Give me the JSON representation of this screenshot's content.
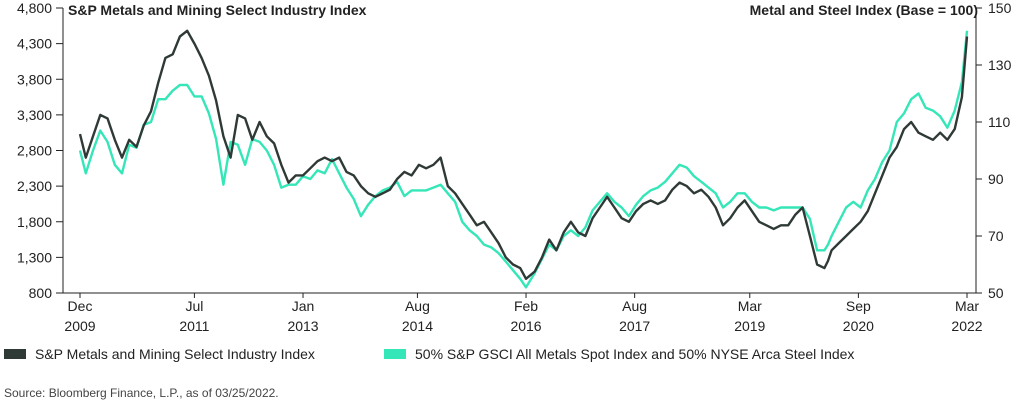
{
  "chart_data": {
    "type": "line",
    "title_left": "S&P Metals and Mining Select Industry Index",
    "title_right": "Metal and Steel Index (Base = 100)",
    "x_ticks": [
      {
        "month": "Dec",
        "year": "2009",
        "t": 2009.92
      },
      {
        "month": "Jul",
        "year": "2011",
        "t": 2011.5
      },
      {
        "month": "Jan",
        "year": "2013",
        "t": 2013.0
      },
      {
        "month": "Aug",
        "year": "2014",
        "t": 2014.58
      },
      {
        "month": "Feb",
        "year": "2016",
        "t": 2016.08
      },
      {
        "month": "Aug",
        "year": "2017",
        "t": 2017.58
      },
      {
        "month": "Mar",
        "year": "2019",
        "t": 2019.17
      },
      {
        "month": "Sep",
        "year": "2020",
        "t": 2020.67
      },
      {
        "month": "Mar",
        "year": "2022",
        "t": 2022.17
      }
    ],
    "xlim": [
      2009.92,
      2022.17
    ],
    "y_left": {
      "ticks": [
        "800",
        "1,300",
        "1,800",
        "2,300",
        "2,800",
        "3,300",
        "3,800",
        "4,300",
        "4,800"
      ],
      "lim": [
        800,
        4800
      ]
    },
    "y_right": {
      "ticks": [
        "50",
        "70",
        "90",
        "110",
        "130",
        "150"
      ],
      "lim": [
        50,
        150
      ]
    },
    "series": [
      {
        "name": "S&P Metals and Mining Select Industry Index",
        "color": "#2f3a36",
        "axis": "left",
        "x": [
          2009.92,
          2010.0,
          2010.1,
          2010.2,
          2010.3,
          2010.4,
          2010.5,
          2010.6,
          2010.7,
          2010.8,
          2010.9,
          2011.0,
          2011.1,
          2011.2,
          2011.3,
          2011.4,
          2011.5,
          2011.6,
          2011.7,
          2011.8,
          2011.9,
          2012.0,
          2012.1,
          2012.2,
          2012.3,
          2012.4,
          2012.5,
          2012.6,
          2012.7,
          2012.8,
          2012.9,
          2013.0,
          2013.1,
          2013.2,
          2013.3,
          2013.4,
          2013.5,
          2013.6,
          2013.7,
          2013.8,
          2013.9,
          2014.0,
          2014.1,
          2014.2,
          2014.3,
          2014.4,
          2014.5,
          2014.6,
          2014.7,
          2014.8,
          2014.9,
          2015.0,
          2015.1,
          2015.2,
          2015.3,
          2015.4,
          2015.5,
          2015.6,
          2015.7,
          2015.8,
          2015.9,
          2016.0,
          2016.08,
          2016.2,
          2016.3,
          2016.4,
          2016.5,
          2016.6,
          2016.7,
          2016.8,
          2016.9,
          2017.0,
          2017.1,
          2017.2,
          2017.3,
          2017.4,
          2017.5,
          2017.6,
          2017.7,
          2017.8,
          2017.9,
          2018.0,
          2018.1,
          2018.2,
          2018.3,
          2018.4,
          2018.5,
          2018.6,
          2018.7,
          2018.8,
          2018.9,
          2019.0,
          2019.1,
          2019.2,
          2019.3,
          2019.4,
          2019.5,
          2019.6,
          2019.7,
          2019.8,
          2019.9,
          2020.0,
          2020.1,
          2020.2,
          2020.25,
          2020.3,
          2020.4,
          2020.5,
          2020.6,
          2020.7,
          2020.8,
          2020.9,
          2021.0,
          2021.1,
          2021.2,
          2021.3,
          2021.4,
          2021.5,
          2021.6,
          2021.7,
          2021.8,
          2021.9,
          2022.0,
          2022.1,
          2022.17
        ],
        "y": [
          3030,
          2700,
          3000,
          3300,
          3250,
          2950,
          2700,
          2950,
          2850,
          3150,
          3350,
          3750,
          4100,
          4150,
          4400,
          4480,
          4300,
          4100,
          3850,
          3500,
          3000,
          2700,
          3300,
          3250,
          2950,
          3200,
          3000,
          2900,
          2600,
          2350,
          2450,
          2450,
          2550,
          2650,
          2700,
          2650,
          2700,
          2500,
          2450,
          2300,
          2200,
          2150,
          2200,
          2250,
          2400,
          2500,
          2450,
          2600,
          2550,
          2600,
          2700,
          2300,
          2200,
          2050,
          1900,
          1750,
          1800,
          1650,
          1500,
          1300,
          1200,
          1150,
          1000,
          1100,
          1300,
          1550,
          1400,
          1650,
          1800,
          1650,
          1600,
          1850,
          2000,
          2150,
          2000,
          1850,
          1800,
          1950,
          2050,
          2100,
          2050,
          2100,
          2250,
          2350,
          2300,
          2200,
          2250,
          2150,
          2000,
          1750,
          1850,
          2000,
          2100,
          1950,
          1800,
          1750,
          1700,
          1750,
          1750,
          1900,
          2000,
          1600,
          1200,
          1150,
          1250,
          1400,
          1500,
          1600,
          1700,
          1800,
          1950,
          2200,
          2450,
          2700,
          2850,
          3100,
          3200,
          3050,
          3000,
          2950,
          3050,
          2950,
          3100,
          3550,
          4400
        ]
      },
      {
        "name": "50% S&P GSCI All Metals Spot Index and 50% NYSE Arca Steel Index",
        "color": "#35e6b8",
        "axis": "right",
        "x": [
          2009.92,
          2010.0,
          2010.1,
          2010.2,
          2010.3,
          2010.4,
          2010.5,
          2010.6,
          2010.7,
          2010.8,
          2010.9,
          2011.0,
          2011.1,
          2011.2,
          2011.3,
          2011.4,
          2011.5,
          2011.6,
          2011.7,
          2011.8,
          2011.9,
          2012.0,
          2012.1,
          2012.2,
          2012.3,
          2012.4,
          2012.5,
          2012.6,
          2012.7,
          2012.8,
          2012.9,
          2013.0,
          2013.1,
          2013.2,
          2013.3,
          2013.4,
          2013.5,
          2013.6,
          2013.7,
          2013.8,
          2013.9,
          2014.0,
          2014.1,
          2014.2,
          2014.3,
          2014.4,
          2014.5,
          2014.6,
          2014.7,
          2014.8,
          2014.9,
          2015.0,
          2015.1,
          2015.2,
          2015.3,
          2015.4,
          2015.5,
          2015.6,
          2015.7,
          2015.8,
          2015.9,
          2016.0,
          2016.08,
          2016.2,
          2016.3,
          2016.4,
          2016.5,
          2016.6,
          2016.7,
          2016.8,
          2016.9,
          2017.0,
          2017.1,
          2017.2,
          2017.3,
          2017.4,
          2017.5,
          2017.6,
          2017.7,
          2017.8,
          2017.9,
          2018.0,
          2018.1,
          2018.2,
          2018.3,
          2018.4,
          2018.5,
          2018.6,
          2018.7,
          2018.8,
          2018.9,
          2019.0,
          2019.1,
          2019.2,
          2019.3,
          2019.4,
          2019.5,
          2019.6,
          2019.7,
          2019.8,
          2019.9,
          2020.0,
          2020.1,
          2020.2,
          2020.25,
          2020.3,
          2020.4,
          2020.5,
          2020.6,
          2020.7,
          2020.8,
          2020.9,
          2021.0,
          2021.1,
          2021.2,
          2021.3,
          2021.4,
          2021.5,
          2021.6,
          2021.7,
          2021.8,
          2021.9,
          2022.0,
          2022.1,
          2022.17
        ],
        "y": [
          100,
          92,
          100,
          107,
          103,
          95,
          92,
          102,
          101,
          109,
          110,
          118,
          118,
          121,
          123,
          123,
          119,
          119,
          113,
          104,
          88,
          103,
          102,
          95,
          104,
          103,
          100,
          95,
          87,
          88,
          88,
          91,
          90,
          93,
          92,
          97,
          92,
          87,
          83,
          77,
          81,
          84,
          86,
          87,
          89,
          84,
          86,
          86,
          86,
          87,
          88,
          85,
          82,
          75,
          72,
          70,
          67,
          66,
          64,
          61,
          58,
          55,
          52,
          57,
          62,
          67,
          65,
          70,
          72,
          70,
          73,
          79,
          82,
          85,
          82,
          80,
          77,
          81,
          84,
          86,
          87,
          89,
          92,
          95,
          94,
          91,
          89,
          87,
          85,
          80,
          82,
          85,
          85,
          82,
          80,
          80,
          79,
          80,
          80,
          80,
          80,
          76,
          65,
          65,
          67,
          70,
          75,
          80,
          82,
          80,
          86,
          90,
          96,
          100,
          110,
          113,
          118,
          120,
          115,
          114,
          112,
          108,
          114,
          124,
          142
        ]
      }
    ]
  },
  "legend": {
    "series_1_label": "S&P Metals and Mining Select Industry Index",
    "series_2_label": "50% S&P GSCI All Metals Spot Index and 50% NYSE Arca Steel Index",
    "series_1_color": "#2f3a36",
    "series_2_color": "#35e6b8"
  },
  "source": "Source: Bloomberg Finance, L.P., as of 03/25/2022."
}
